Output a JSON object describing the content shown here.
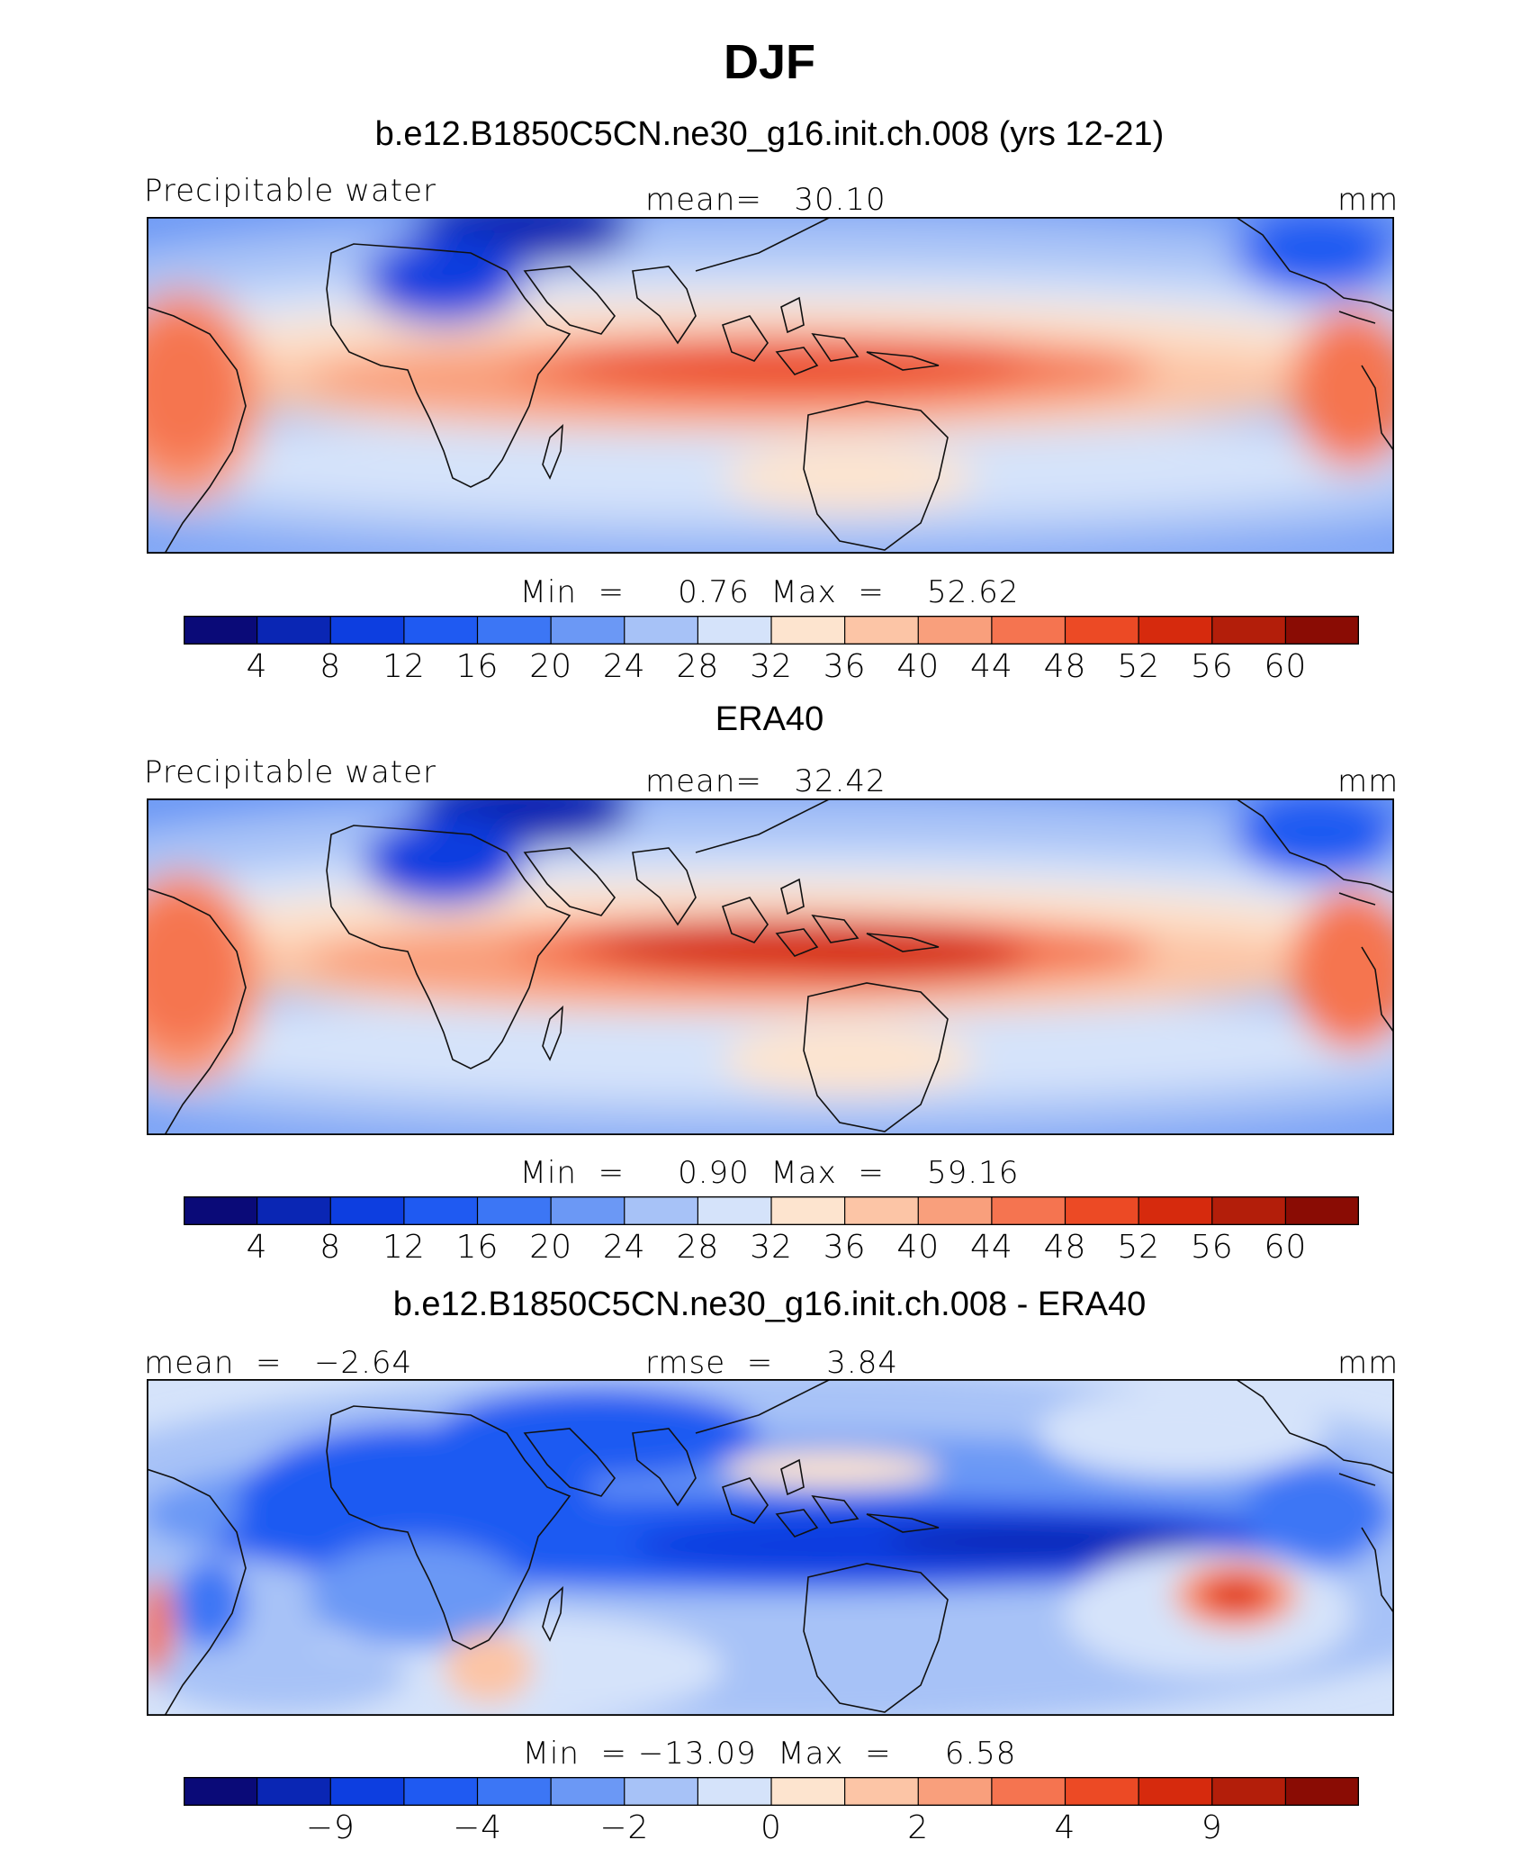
{
  "title": "DJF",
  "colors": [
    "#0a0a78",
    "#0a26b4",
    "#0d3ee0",
    "#1f5af2",
    "#3c76f5",
    "#6b98f5",
    "#a7c2f7",
    "#d5e3fa",
    "#fde4cf",
    "#fcc5a6",
    "#f99f7c",
    "#f57450",
    "#ec4a25",
    "#d62a0d",
    "#b31e0a",
    "#8a0c04"
  ],
  "chart_data": [
    {
      "type": "heatmap",
      "title": "b.e12.B1850C5CN.ne30_g16.init.ch.008 (yrs 12-21)",
      "left_label": "Precipitable water",
      "center_label": "mean=   30.10",
      "units": "mm",
      "stats": "Min  =     0.76  Max  =    52.62",
      "levels": [
        4,
        8,
        12,
        16,
        20,
        24,
        28,
        32,
        36,
        40,
        44,
        48,
        52,
        56,
        60
      ],
      "tick_labels": [
        "4",
        "8",
        "12",
        "16",
        "20",
        "24",
        "28",
        "32",
        "36",
        "40",
        "44",
        "48",
        "52",
        "56",
        "60"
      ],
      "mean": 30.1,
      "min": 0.76,
      "max": 52.62
    },
    {
      "type": "heatmap",
      "title": "ERA40",
      "left_label": "Precipitable water",
      "center_label": "mean=   32.42",
      "units": "mm",
      "stats": "Min  =     0.90  Max  =    59.16",
      "levels": [
        4,
        8,
        12,
        16,
        20,
        24,
        28,
        32,
        36,
        40,
        44,
        48,
        52,
        56,
        60
      ],
      "tick_labels": [
        "4",
        "8",
        "12",
        "16",
        "20",
        "24",
        "28",
        "32",
        "36",
        "40",
        "44",
        "48",
        "52",
        "56",
        "60"
      ],
      "mean": 32.42,
      "min": 0.9,
      "max": 59.16
    },
    {
      "type": "heatmap",
      "title": "b.e12.B1850C5CN.ne30_g16.init.ch.008 - ERA40",
      "left_label": "mean  =   −2.64",
      "center_label": "rmse  =     3.84",
      "units": "mm",
      "stats": "Min  = −13.09  Max  =     6.58",
      "tick_labels": [
        "−9",
        "−4",
        "−2",
        "0",
        "2",
        "4",
        "9"
      ],
      "tick_boundaries": [
        2,
        4,
        6,
        8,
        10,
        12,
        14
      ],
      "mean": -2.64,
      "rmse": 3.84,
      "min": -13.09,
      "max": 6.58
    }
  ]
}
